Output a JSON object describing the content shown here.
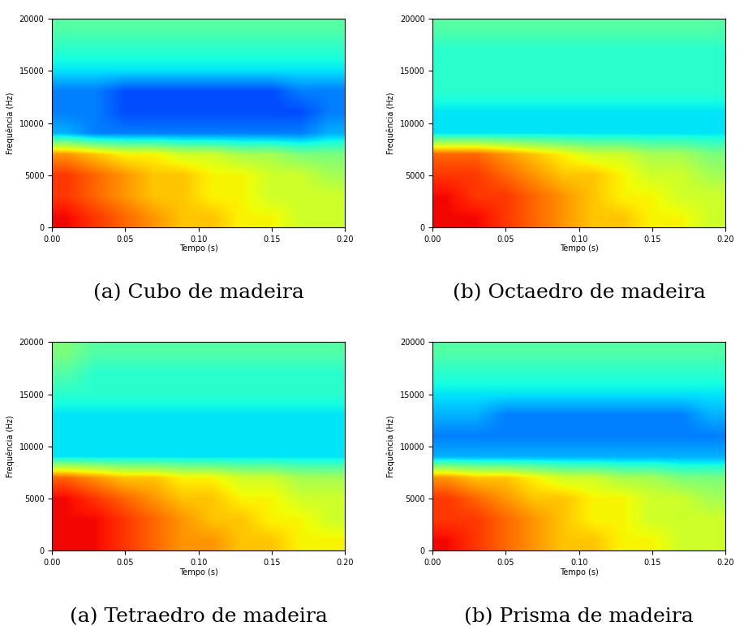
{
  "chart_data": [
    {
      "type": "heatmap",
      "title": "(a) Cubo de madeira",
      "x_label": "Tempo (s)",
      "y_label": "Frequência (Hz)",
      "xlim": [
        0,
        0.2
      ],
      "ylim": [
        0,
        20000
      ],
      "xticks": [
        {
          "value": 0,
          "label": "0.00"
        },
        {
          "value": 0.05,
          "label": "0.05"
        },
        {
          "value": 0.1,
          "label": "0.10"
        },
        {
          "value": 0.15,
          "label": "0.15"
        },
        {
          "value": 0.2,
          "label": "0.20"
        }
      ],
      "yticks": [
        0,
        5000,
        10000,
        15000,
        20000
      ],
      "color_range": [
        0,
        10
      ],
      "cells": [
        [
          9,
          8.5,
          8,
          7.5,
          7,
          7,
          6.5,
          6.5,
          6,
          6
        ],
        [
          8.5,
          8,
          7.5,
          7,
          7,
          6.5,
          6.5,
          6,
          6,
          6
        ],
        [
          8.5,
          8,
          7.5,
          7,
          7,
          6.5,
          6.5,
          6,
          6,
          5.5
        ],
        [
          7.5,
          7,
          6.5,
          6.5,
          6,
          6,
          5.5,
          5.5,
          5,
          5
        ],
        [
          3,
          2.5,
          2.5,
          2.5,
          2.5,
          2.5,
          2.5,
          2.5,
          2.5,
          3
        ],
        [
          2.5,
          2.5,
          2,
          2,
          2,
          2,
          2,
          2,
          2,
          2.5
        ],
        [
          2.5,
          2.5,
          2,
          2,
          2,
          2,
          2,
          2,
          2.5,
          2.5
        ],
        [
          3.5,
          3.5,
          3.5,
          3.5,
          3.5,
          3.5,
          3.5,
          3.5,
          3.5,
          3.5
        ],
        [
          4,
          4,
          4,
          4,
          4,
          4,
          4,
          4,
          4,
          4
        ],
        [
          4.5,
          4.5,
          4.5,
          4.5,
          4.5,
          4.5,
          4.5,
          4.5,
          4.5,
          4.5
        ]
      ]
    },
    {
      "type": "heatmap",
      "title": "(b) Octaedro de madeira",
      "x_label": "Tempo (s)",
      "y_label": "Frequência (Hz)",
      "xlim": [
        0,
        0.2
      ],
      "ylim": [
        0,
        20000
      ],
      "xticks": [
        {
          "value": 0,
          "label": "0.00"
        },
        {
          "value": 0.05,
          "label": "0.05"
        },
        {
          "value": 0.1,
          "label": "0.10"
        },
        {
          "value": 0.15,
          "label": "0.15"
        },
        {
          "value": 0.2,
          "label": "0.20"
        }
      ],
      "yticks": [
        0,
        5000,
        10000,
        15000,
        20000
      ],
      "color_range": [
        0,
        10
      ],
      "cells": [
        [
          9,
          9,
          8.5,
          8,
          7.5,
          7,
          7,
          6.5,
          6.5,
          6
        ],
        [
          9,
          8.5,
          8.5,
          8,
          7.5,
          7,
          6.5,
          6.5,
          6,
          6
        ],
        [
          8.5,
          8.5,
          8,
          7.5,
          7,
          7,
          6.5,
          6,
          6,
          5.5
        ],
        [
          8,
          8,
          7.5,
          7,
          6.5,
          6,
          6,
          5.5,
          5.5,
          5
        ],
        [
          3.5,
          3.5,
          3.5,
          3.5,
          3.5,
          3.5,
          3.5,
          3.5,
          3.5,
          3.5
        ],
        [
          3.5,
          3.5,
          3.5,
          3.5,
          3.5,
          3.5,
          3.5,
          3.5,
          3.5,
          3.5
        ],
        [
          4,
          4,
          4,
          4,
          4,
          4,
          4,
          4,
          4,
          4
        ],
        [
          4,
          4,
          4,
          4,
          4,
          4,
          4,
          4,
          4,
          4
        ],
        [
          4,
          4,
          4,
          4,
          4,
          4,
          4,
          4,
          4,
          4
        ],
        [
          4.5,
          4.5,
          4.5,
          4.5,
          4.5,
          4.5,
          4.5,
          4.5,
          4.5,
          4.5
        ]
      ]
    },
    {
      "type": "heatmap",
      "title": "(a) Tetraedro de madeira",
      "x_label": "Tempo (s)",
      "y_label": "Frequência (Hz)",
      "xlim": [
        0,
        0.2
      ],
      "ylim": [
        0,
        20000
      ],
      "xticks": [
        {
          "value": 0,
          "label": "0.00"
        },
        {
          "value": 0.05,
          "label": "0.05"
        },
        {
          "value": 0.1,
          "label": "0.10"
        },
        {
          "value": 0.15,
          "label": "0.15"
        },
        {
          "value": 0.2,
          "label": "0.20"
        }
      ],
      "yticks": [
        0,
        5000,
        10000,
        15000,
        20000
      ],
      "color_range": [
        0,
        10
      ],
      "cells": [
        [
          9,
          9,
          8.5,
          8,
          7.5,
          7.5,
          7,
          7,
          6.5,
          6.5
        ],
        [
          9,
          9,
          8.5,
          8,
          7.5,
          7,
          7,
          6.5,
          6.5,
          6
        ],
        [
          9,
          8.5,
          8,
          7.5,
          7,
          7,
          6.5,
          6.5,
          6,
          6
        ],
        [
          8,
          7.5,
          7,
          7,
          6.5,
          6.5,
          6,
          6,
          5.5,
          5.5
        ],
        [
          3.5,
          3.5,
          3.5,
          3.5,
          3.5,
          3.5,
          3.5,
          3.5,
          3.5,
          3.5
        ],
        [
          3.5,
          3.5,
          3.5,
          3.5,
          3.5,
          3.5,
          3.5,
          3.5,
          3.5,
          3.5
        ],
        [
          3.5,
          3.5,
          3.5,
          3.5,
          3.5,
          3.5,
          3.5,
          3.5,
          3.5,
          3.5
        ],
        [
          4,
          4,
          4,
          4,
          4,
          4,
          4,
          4,
          4,
          4
        ],
        [
          4.5,
          4,
          4,
          4,
          4,
          4,
          4,
          4,
          4,
          4
        ],
        [
          5,
          4.5,
          4.5,
          4.5,
          4.5,
          4.5,
          4.5,
          4.5,
          4.5,
          4.5
        ]
      ]
    },
    {
      "type": "heatmap",
      "title": "(b) Prisma de madeira",
      "x_label": "Tempo (s)",
      "y_label": "Frequência (Hz)",
      "xlim": [
        0,
        0.2
      ],
      "ylim": [
        0,
        20000
      ],
      "xticks": [
        {
          "value": 0,
          "label": "0.00"
        },
        {
          "value": 0.05,
          "label": "0.05"
        },
        {
          "value": 0.1,
          "label": "0.10"
        },
        {
          "value": 0.15,
          "label": "0.15"
        },
        {
          "value": 0.2,
          "label": "0.20"
        }
      ],
      "yticks": [
        0,
        5000,
        10000,
        15000,
        20000
      ],
      "color_range": [
        0,
        10
      ],
      "cells": [
        [
          9,
          8.5,
          8,
          7.5,
          7,
          7,
          6.5,
          6.5,
          6,
          6
        ],
        [
          8.5,
          8.5,
          8,
          7.5,
          7,
          6.5,
          6.5,
          6,
          6,
          6
        ],
        [
          8.5,
          8,
          7.5,
          7,
          7,
          6.5,
          6.5,
          6,
          6,
          5.5
        ],
        [
          7.5,
          7,
          7,
          6.5,
          6,
          6,
          5.5,
          5.5,
          5,
          5
        ],
        [
          3,
          3,
          3,
          3,
          3,
          3,
          3,
          3,
          3,
          3
        ],
        [
          2.5,
          2.5,
          2.5,
          2.5,
          2.5,
          2.5,
          2.5,
          2.5,
          2.5,
          2.5
        ],
        [
          3,
          3,
          2.5,
          2.5,
          2.5,
          2.5,
          2.5,
          2.5,
          2.5,
          3
        ],
        [
          3.5,
          3.5,
          3.5,
          3.5,
          3.5,
          3.5,
          3.5,
          3.5,
          3.5,
          3.5
        ],
        [
          4,
          4,
          4,
          4,
          4,
          4,
          4,
          4,
          4,
          4
        ],
        [
          4.5,
          4.5,
          4.5,
          4.5,
          4.5,
          4.5,
          4.5,
          4.5,
          4.5,
          4.5
        ]
      ]
    }
  ]
}
